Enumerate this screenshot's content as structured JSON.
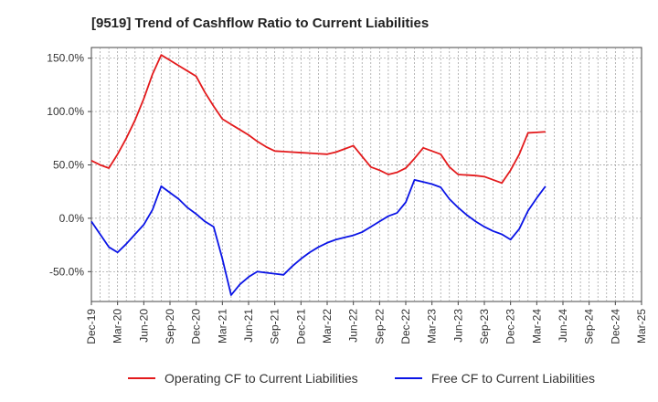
{
  "chart_data": {
    "type": "line",
    "title": "[9519]  Trend of Cashflow Ratio to Current Liabilities",
    "xlabel": "",
    "ylabel": "",
    "x_ticks": [
      "Dec-19",
      "Mar-20",
      "Jun-20",
      "Sep-20",
      "Dec-20",
      "Mar-21",
      "Jun-21",
      "Sep-21",
      "Dec-21",
      "Mar-22",
      "Jun-22",
      "Sep-22",
      "Dec-22",
      "Mar-23",
      "Jun-23",
      "Sep-23",
      "Dec-23",
      "Mar-24",
      "Jun-24",
      "Sep-24",
      "Dec-24",
      "Mar-25"
    ],
    "y_ticks": [
      "150.0%",
      "100.0%",
      "50.0%",
      "0.0%",
      "-50.0%"
    ],
    "y_tick_values": [
      150,
      100,
      50,
      0,
      -50
    ],
    "ylim": [
      -78,
      160
    ],
    "grid": true,
    "legend_position": "bottom",
    "series": [
      {
        "name": "Operating CF to Current Liabilities",
        "color": "#e31a1c",
        "points": [
          [
            0,
            54
          ],
          [
            1,
            50
          ],
          [
            2,
            47
          ],
          [
            3,
            60
          ],
          [
            4,
            75
          ],
          [
            5,
            92
          ],
          [
            6,
            112
          ],
          [
            7,
            135
          ],
          [
            8,
            153
          ],
          [
            9,
            148
          ],
          [
            10,
            143
          ],
          [
            11,
            138
          ],
          [
            12,
            133
          ],
          [
            13,
            118
          ],
          [
            14,
            105
          ],
          [
            15,
            93
          ],
          [
            16,
            88
          ],
          [
            17,
            83
          ],
          [
            18,
            78
          ],
          [
            19,
            72
          ],
          [
            20,
            67
          ],
          [
            21,
            63
          ],
          [
            22,
            62.5
          ],
          [
            23,
            62
          ],
          [
            24,
            61.5
          ],
          [
            25,
            61
          ],
          [
            26,
            60.5
          ],
          [
            27,
            60
          ],
          [
            28,
            62
          ],
          [
            29,
            65
          ],
          [
            30,
            68
          ],
          [
            31,
            58
          ],
          [
            32,
            48
          ],
          [
            33,
            45
          ],
          [
            34,
            41
          ],
          [
            35,
            43
          ],
          [
            36,
            47
          ],
          [
            37,
            56
          ],
          [
            38,
            66
          ],
          [
            39,
            63
          ],
          [
            40,
            60
          ],
          [
            41,
            48
          ],
          [
            42,
            41
          ],
          [
            43,
            40.5
          ],
          [
            44,
            40
          ],
          [
            45,
            39
          ],
          [
            46,
            36
          ],
          [
            47,
            33
          ],
          [
            48,
            45
          ],
          [
            49,
            60
          ],
          [
            50,
            80
          ],
          [
            51,
            80.5
          ],
          [
            52,
            81
          ]
        ]
      },
      {
        "name": "Free CF to Current Liabilities",
        "color": "#0a14e6",
        "points": [
          [
            0,
            -3
          ],
          [
            1,
            -15
          ],
          [
            2,
            -27
          ],
          [
            3,
            -32
          ],
          [
            4,
            -24
          ],
          [
            5,
            -15
          ],
          [
            6,
            -6
          ],
          [
            7,
            8
          ],
          [
            8,
            30
          ],
          [
            9,
            24
          ],
          [
            10,
            18
          ],
          [
            11,
            10
          ],
          [
            12,
            4
          ],
          [
            13,
            -3
          ],
          [
            14,
            -8
          ],
          [
            15,
            -38
          ],
          [
            16,
            -72
          ],
          [
            17,
            -62
          ],
          [
            18,
            -55
          ],
          [
            19,
            -50
          ],
          [
            20,
            -51
          ],
          [
            21,
            -52
          ],
          [
            22,
            -53
          ],
          [
            23,
            -45
          ],
          [
            24,
            -38
          ],
          [
            25,
            -32
          ],
          [
            26,
            -27
          ],
          [
            27,
            -23
          ],
          [
            28,
            -20
          ],
          [
            29,
            -18
          ],
          [
            30,
            -16
          ],
          [
            31,
            -13
          ],
          [
            32,
            -8
          ],
          [
            33,
            -3
          ],
          [
            34,
            2
          ],
          [
            35,
            5
          ],
          [
            36,
            15
          ],
          [
            37,
            36
          ],
          [
            38,
            34
          ],
          [
            39,
            32
          ],
          [
            40,
            29
          ],
          [
            41,
            18
          ],
          [
            42,
            10
          ],
          [
            43,
            3
          ],
          [
            44,
            -3
          ],
          [
            45,
            -8
          ],
          [
            46,
            -12
          ],
          [
            47,
            -15
          ],
          [
            48,
            -20
          ],
          [
            49,
            -10
          ],
          [
            50,
            7
          ],
          [
            51,
            19
          ],
          [
            52,
            30
          ]
        ]
      }
    ]
  }
}
